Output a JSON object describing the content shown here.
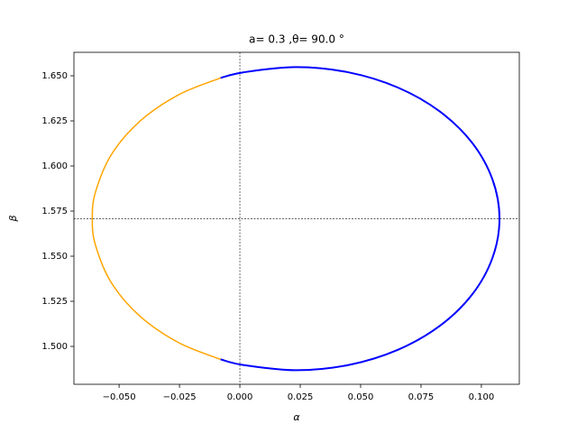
{
  "chart_data": {
    "type": "line",
    "title": "a= 0.3 ,θ= 90.0 °",
    "x_label": "α",
    "y_label": "β",
    "xlim": [
      -0.0687,
      0.1157
    ],
    "ylim": [
      1.479,
      1.663
    ],
    "xticks": [
      {
        "value": -0.05,
        "label": "−0.050"
      },
      {
        "value": -0.025,
        "label": "−0.025"
      },
      {
        "value": 0,
        "label": "0.000"
      },
      {
        "value": 0.025,
        "label": "0.025"
      },
      {
        "value": 0.05,
        "label": "0.050"
      },
      {
        "value": 0.075,
        "label": "0.075"
      },
      {
        "value": 0.1,
        "label": "0.100"
      }
    ],
    "yticks": [
      {
        "value": 1.5,
        "label": "1.500"
      },
      {
        "value": 1.525,
        "label": "1.525"
      },
      {
        "value": 1.55,
        "label": "1.550"
      },
      {
        "value": 1.575,
        "label": "1.575"
      },
      {
        "value": 1.6,
        "label": "1.600"
      },
      {
        "value": 1.625,
        "label": "1.625"
      },
      {
        "value": 1.65,
        "label": "1.650"
      }
    ],
    "reference_lines": {
      "x": 0,
      "y": 1.5708
    },
    "series": [
      {
        "color": "#0000ff",
        "x": [
          -0.008,
          0.0014,
          0.0232,
          0.045,
          0.0654,
          0.0828,
          0.0962,
          0.1046,
          0.1075,
          0.1046,
          0.0962,
          0.0828,
          0.0654,
          0.045,
          0.0232,
          0.0014,
          -0.008
        ],
        "y": [
          1.4928,
          1.4897,
          1.4868,
          1.4897,
          1.4981,
          1.5114,
          1.5288,
          1.5491,
          1.5708,
          1.5925,
          1.6128,
          1.6302,
          1.6435,
          1.6519,
          1.6548,
          1.6519,
          1.6488
        ]
      },
      {
        "color": "#ffa500",
        "x": [
          -0.008,
          -0.0252,
          -0.0414,
          -0.0532,
          -0.0598,
          -0.0611,
          -0.0598,
          -0.0532,
          -0.0414,
          -0.0252,
          -0.008
        ],
        "y": [
          1.6488,
          1.6396,
          1.6248,
          1.6063,
          1.5854,
          1.5708,
          1.5562,
          1.5353,
          1.5168,
          1.502,
          1.4928
        ]
      }
    ]
  }
}
